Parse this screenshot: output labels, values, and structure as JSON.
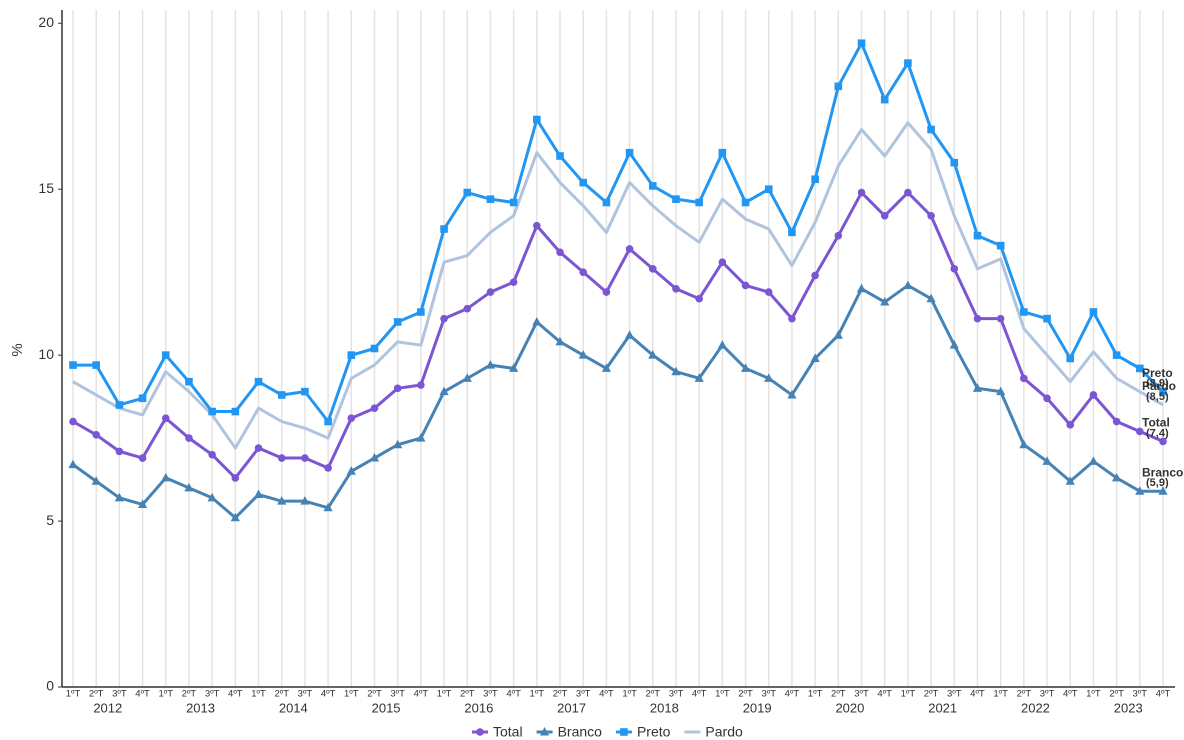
{
  "chart_data": {
    "type": "line",
    "y_label": "%",
    "categories": [
      "1ºT",
      "2ºT",
      "3ºT",
      "4ºT",
      "1ºT",
      "2ºT",
      "3ºT",
      "4ºT",
      "1ºT",
      "2ºT",
      "3ºT",
      "4ºT",
      "1ºT",
      "2ºT",
      "3ºT",
      "4ºT",
      "1ºT",
      "2ºT",
      "3ºT",
      "4ºT",
      "1ºT",
      "2ºT",
      "3ºT",
      "4ºT",
      "1ºT",
      "2ºT",
      "3ºT",
      "4ºT",
      "1ºT",
      "2ºT",
      "3ºT",
      "4ºT",
      "1ºT",
      "2ºT",
      "3ºT",
      "4ºT",
      "1ºT",
      "2ºT",
      "3ºT",
      "4ºT",
      "1ºT",
      "2ºT",
      "3ºT",
      "4ºT",
      "1ºT",
      "2ºT",
      "3ºT",
      "4ºT"
    ],
    "years": [
      "2012",
      "2013",
      "2014",
      "2015",
      "2016",
      "2017",
      "2018",
      "2019",
      "2020",
      "2021",
      "2022",
      "2023"
    ],
    "series": [
      {
        "name": "Total",
        "color": "#7b55d4",
        "marker": "circle",
        "values": [
          8.0,
          7.6,
          7.1,
          6.9,
          8.1,
          7.5,
          7.0,
          6.3,
          7.2,
          6.9,
          6.9,
          6.6,
          8.1,
          8.4,
          9.0,
          9.1,
          11.1,
          11.4,
          11.9,
          12.2,
          13.9,
          13.1,
          12.5,
          11.9,
          13.2,
          12.6,
          12.0,
          11.7,
          12.8,
          12.1,
          11.9,
          11.1,
          12.4,
          13.6,
          14.9,
          14.2,
          14.9,
          14.2,
          12.6,
          11.1,
          11.1,
          9.3,
          8.7,
          7.9,
          8.8,
          8.0,
          7.7,
          7.4
        ]
      },
      {
        "name": "Branco",
        "color": "#4682b4",
        "marker": "triangle",
        "values": [
          6.7,
          6.2,
          5.7,
          5.5,
          6.3,
          6.0,
          5.7,
          5.1,
          5.8,
          5.6,
          5.6,
          5.4,
          6.5,
          6.9,
          7.3,
          7.5,
          8.9,
          9.3,
          9.7,
          9.6,
          11.0,
          10.4,
          10.0,
          9.6,
          10.6,
          10.0,
          9.5,
          9.3,
          10.3,
          9.6,
          9.3,
          8.8,
          9.9,
          10.6,
          12.0,
          11.6,
          12.1,
          11.7,
          10.3,
          9.0,
          8.9,
          7.3,
          6.8,
          6.2,
          6.8,
          6.3,
          5.9,
          5.9
        ]
      },
      {
        "name": "Preto",
        "color": "#2196f3",
        "marker": "square",
        "values": [
          9.7,
          9.7,
          8.5,
          8.7,
          10.0,
          9.2,
          8.3,
          8.3,
          9.2,
          8.8,
          8.9,
          8.0,
          10.0,
          10.2,
          11.0,
          11.3,
          13.8,
          14.9,
          14.7,
          14.6,
          17.1,
          16.0,
          15.2,
          14.6,
          16.1,
          15.1,
          14.7,
          14.6,
          16.1,
          14.6,
          15.0,
          13.7,
          15.3,
          18.1,
          19.4,
          17.7,
          18.8,
          16.8,
          15.8,
          13.6,
          13.3,
          11.3,
          11.1,
          9.9,
          11.3,
          10.0,
          9.6,
          8.9
        ]
      },
      {
        "name": "Pardo",
        "color": "#b0c4de",
        "marker": "none",
        "values": [
          9.2,
          8.8,
          8.4,
          8.2,
          9.5,
          8.9,
          8.2,
          7.2,
          8.4,
          8.0,
          7.8,
          7.5,
          9.3,
          9.7,
          10.4,
          10.3,
          12.8,
          13.0,
          13.7,
          14.2,
          16.1,
          15.2,
          14.5,
          13.7,
          15.2,
          14.5,
          13.9,
          13.4,
          14.7,
          14.1,
          13.8,
          12.7,
          14.0,
          15.7,
          16.8,
          16.0,
          17.0,
          16.2,
          14.2,
          12.6,
          12.9,
          10.8,
          10.0,
          9.2,
          10.1,
          9.3,
          8.9,
          8.5
        ]
      }
    ],
    "end_labels": [
      {
        "name": "Preto",
        "value": "(8,9)"
      },
      {
        "name": "Pardo",
        "value": "(8,5)"
      },
      {
        "name": "Total",
        "value": "(7,4)"
      },
      {
        "name": "Branco",
        "value": "(5,9)"
      }
    ],
    "ylim": [
      0,
      20.4
    ],
    "yticks": [
      0,
      5,
      10,
      15,
      20
    ],
    "grid": true
  }
}
